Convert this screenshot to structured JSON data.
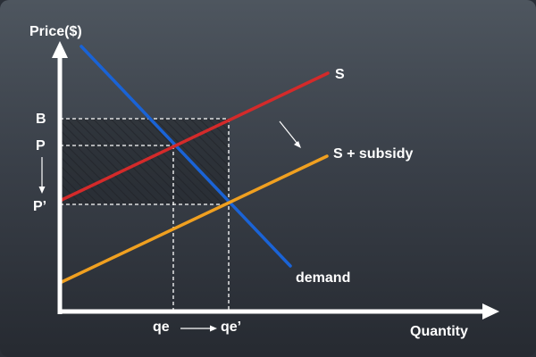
{
  "axes": {
    "y_label": "Price($)",
    "x_label": "Quantity"
  },
  "price_labels": {
    "b": "B",
    "p": "P",
    "p_prime": "P’"
  },
  "quantity_labels": {
    "qe": "qe",
    "qe_prime": "qe’"
  },
  "curves": {
    "supply": "S",
    "supply_subsidy": "S + subsidy",
    "demand": "demand"
  },
  "colors": {
    "supply": "#d42a2a",
    "supply_subsidy": "#f0a020",
    "demand": "#1a63d6",
    "axes": "#ffffff",
    "guides": "#ffffff",
    "hatch": "#000000"
  },
  "icons": {
    "shift_arrow": "diagonal-arrow-down-right-icon",
    "price_drop_arrow": "arrow-down-icon",
    "quantity_increase_arrow": "arrow-right-icon"
  }
}
